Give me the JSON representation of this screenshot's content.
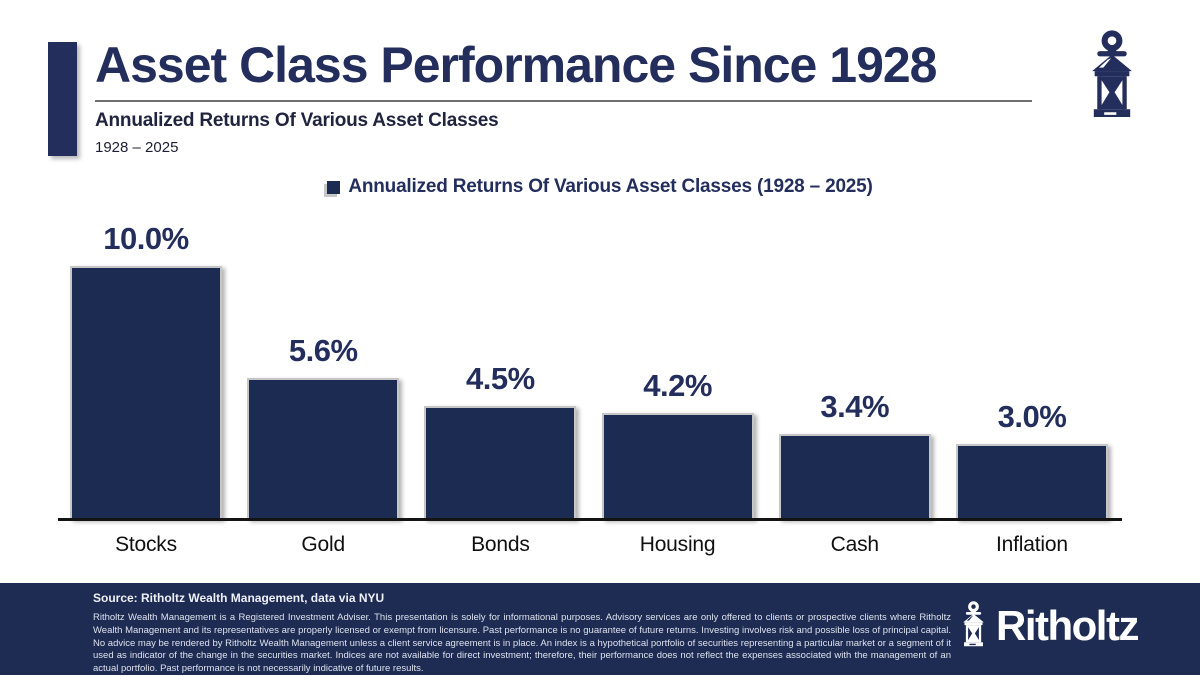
{
  "header": {
    "title": "Asset Class Performance Since 1928",
    "subtitle": "Annualized Returns Of Various Asset Classes",
    "date_range": "1928 – 2025"
  },
  "legend": {
    "label": "Annualized Returns Of Various Asset Classes (1928 – 2025)"
  },
  "chart_data": {
    "type": "bar",
    "title": "Annualized Returns Of Various Asset Classes (1928 – 2025)",
    "categories": [
      "Stocks",
      "Gold",
      "Bonds",
      "Housing",
      "Cash",
      "Inflation"
    ],
    "values": [
      10.0,
      5.6,
      4.5,
      4.2,
      3.4,
      3.0
    ],
    "value_labels": [
      "10.0%",
      "5.6%",
      "4.5%",
      "4.2%",
      "3.4%",
      "3.0%"
    ],
    "xlabel": "",
    "ylabel": "",
    "ylim": [
      0,
      10.5
    ],
    "grid": false,
    "legend_position": "top-center",
    "bar_color": "#1c2b52"
  },
  "footer": {
    "source": "Source: Ritholtz Wealth Management, data via NYU",
    "disclaimer": "Ritholtz Wealth Management is a Registered Investment Adviser. This presentation is solely for informational purposes. Advisory services are only offered to clients or prospective clients where Ritholtz Wealth Management and its representatives are properly licensed or exempt from licensure. Past performance is no guarantee of future returns. Investing involves risk and possible loss of principal capital. No advice may be rendered by Ritholtz Wealth Management unless a client service agreement is in place. An index is a hypothetical portfolio of securities representing a particular market or a segment of it used as indicator of the change in the securities market. Indices are not available for direct investment; therefore, their performance does not reflect the expenses associated with the management of an actual portfolio. Past performance is not necessarily indicative of future results.",
    "brand": "Ritholtz"
  },
  "icons": {
    "header_icon": "lantern-icon",
    "footer_icon": "lantern-icon"
  },
  "colors": {
    "navy": "#1c2b52",
    "title_navy": "#232e5c",
    "bar_edge_gray": "#c6c6c6",
    "axis_black": "#141414",
    "underline_gray": "#6f6f6f",
    "footer_bg": "#1e2b52",
    "footer_text": "#dde2ef",
    "background": "#ffffff"
  }
}
